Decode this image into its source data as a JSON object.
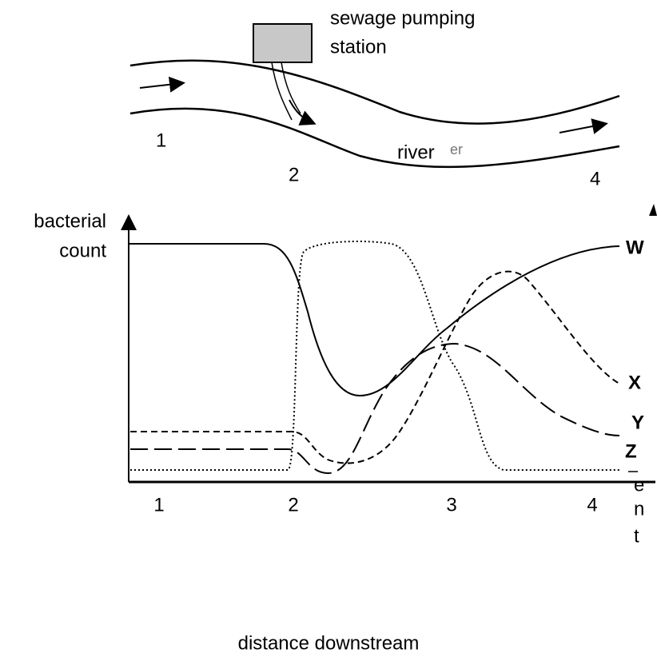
{
  "diagram": {
    "station_label": [
      "sewage pumping",
      "station"
    ],
    "river_label": "river",
    "river_artifact": "er",
    "river_points": [
      "1",
      "2",
      "4"
    ],
    "y_axis_label": [
      "bacterial",
      "count"
    ],
    "curve_labels": [
      "W",
      "X",
      "Y",
      "Z"
    ],
    "x_axis_points": [
      "1",
      "2",
      "3",
      "4"
    ],
    "x_axis_label": "distance downstream",
    "edge_artifact": [
      "e",
      "n",
      "t"
    ]
  }
}
